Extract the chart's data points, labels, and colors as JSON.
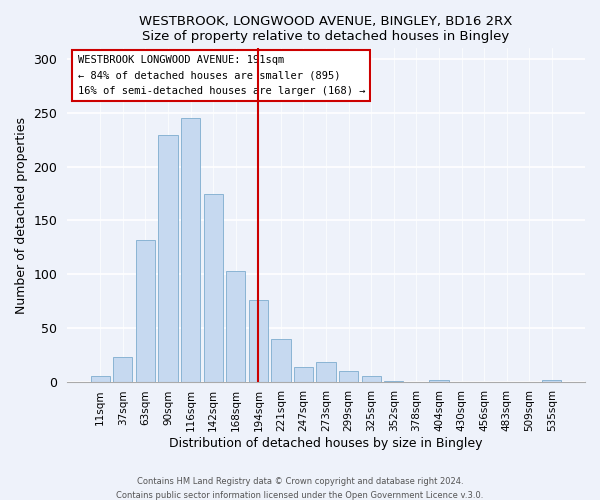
{
  "title": "WESTBROOK, LONGWOOD AVENUE, BINGLEY, BD16 2RX",
  "subtitle": "Size of property relative to detached houses in Bingley",
  "xlabel": "Distribution of detached houses by size in Bingley",
  "ylabel": "Number of detached properties",
  "bar_color": "#c6d9f0",
  "bar_edge_color": "#8ab4d4",
  "background_color": "#eef2fa",
  "categories": [
    "11sqm",
    "37sqm",
    "63sqm",
    "90sqm",
    "116sqm",
    "142sqm",
    "168sqm",
    "194sqm",
    "221sqm",
    "247sqm",
    "273sqm",
    "299sqm",
    "325sqm",
    "352sqm",
    "378sqm",
    "404sqm",
    "430sqm",
    "456sqm",
    "483sqm",
    "509sqm",
    "535sqm"
  ],
  "values": [
    5,
    23,
    132,
    229,
    245,
    175,
    103,
    76,
    40,
    14,
    18,
    10,
    5,
    1,
    0,
    2,
    0,
    0,
    0,
    0,
    2
  ],
  "ylim": [
    0,
    310
  ],
  "yticks": [
    0,
    50,
    100,
    150,
    200,
    250,
    300
  ],
  "vline_index": 7,
  "vline_color": "#cc0000",
  "annotation_line1": "WESTBROOK LONGWOOD AVENUE: 191sqm",
  "annotation_line2": "← 84% of detached houses are smaller (895)",
  "annotation_line3": "16% of semi-detached houses are larger (168) →",
  "annotation_box_color": "#ffffff",
  "annotation_box_edge": "#cc0000",
  "footer1": "Contains HM Land Registry data © Crown copyright and database right 2024.",
  "footer2": "Contains public sector information licensed under the Open Government Licence v.3.0."
}
